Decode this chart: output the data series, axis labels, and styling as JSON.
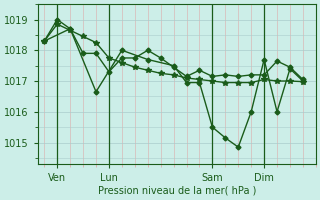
{
  "bg_color": "#cceee8",
  "grid_major_color": "#aacccc",
  "grid_minor_x_color": "#ddaaaa",
  "grid_minor_y_color": "#aacccc",
  "line_color": "#1a5c1a",
  "vline_color": "#1a5c1a",
  "xlabel": "Pression niveau de la mer( hPa )",
  "yticks": [
    1015,
    1016,
    1017,
    1018,
    1019
  ],
  "xtick_labels": [
    "Ven",
    "Lun",
    "Sam",
    "Dim"
  ],
  "xtick_positions": [
    6,
    30,
    78,
    102
  ],
  "vline_positions": [
    6,
    30,
    78,
    102
  ],
  "xlim": [
    -3,
    126
  ],
  "ylim": [
    1014.3,
    1019.5
  ],
  "series": [
    {
      "x": [
        0,
        6,
        12,
        18,
        24,
        30,
        36,
        42,
        48,
        54,
        60,
        66,
        72,
        78,
        84,
        90,
        96,
        102,
        108,
        114,
        120
      ],
      "y": [
        1018.3,
        1018.85,
        1018.65,
        1018.45,
        1018.25,
        1017.75,
        1017.6,
        1017.45,
        1017.35,
        1017.25,
        1017.2,
        1017.1,
        1017.05,
        1017.0,
        1016.95,
        1016.95,
        1016.95,
        1017.05,
        1017.0,
        1017.0,
        1016.98
      ],
      "marker": "*",
      "markersize": 4,
      "linewidth": 1.0
    },
    {
      "x": [
        0,
        6,
        12,
        18,
        24,
        30,
        36,
        42,
        48,
        54,
        60,
        66,
        72,
        78,
        84,
        90,
        96,
        102,
        108,
        114,
        120
      ],
      "y": [
        1018.3,
        1019.0,
        1018.7,
        1017.9,
        1017.9,
        1017.3,
        1017.75,
        1017.75,
        1018.0,
        1017.75,
        1017.45,
        1017.15,
        1017.35,
        1017.15,
        1017.2,
        1017.15,
        1017.2,
        1017.2,
        1017.65,
        1017.45,
        1017.05
      ],
      "marker": "D",
      "markersize": 2.5,
      "linewidth": 1.0
    },
    {
      "x": [
        0,
        12,
        24,
        36,
        48,
        60,
        66,
        72,
        78,
        84,
        90,
        96,
        102,
        108,
        114,
        120
      ],
      "y": [
        1018.3,
        1018.7,
        1016.65,
        1018.0,
        1017.7,
        1017.5,
        1016.95,
        1016.95,
        1015.5,
        1015.15,
        1014.85,
        1016.0,
        1017.7,
        1016.0,
        1017.4,
        1017.0
      ],
      "marker": "D",
      "markersize": 2.5,
      "linewidth": 1.0
    }
  ]
}
